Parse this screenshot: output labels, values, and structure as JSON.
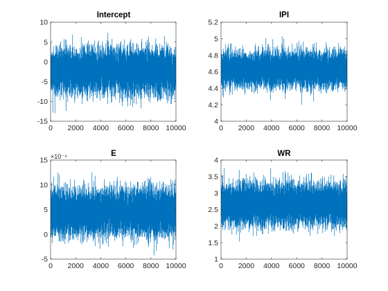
{
  "figure": {
    "background": "#ffffff",
    "line_color": "#0072bd",
    "axis_color": "#262626"
  },
  "chart_data": [
    {
      "type": "line",
      "title": "Intercept",
      "xlabel": "",
      "ylabel": "",
      "xlim": [
        0,
        10000
      ],
      "ylim": [
        -15,
        10
      ],
      "xticks": [
        0,
        2000,
        4000,
        6000,
        8000,
        10000
      ],
      "yticks": [
        -15,
        -10,
        -5,
        0,
        5,
        10
      ],
      "series": [
        {
          "n": 10000,
          "mean": -2.2,
          "sd": 3.1,
          "min": -13,
          "max": 8
        }
      ]
    },
    {
      "type": "line",
      "title": "IPI",
      "xlabel": "",
      "ylabel": "",
      "xlim": [
        0,
        10000
      ],
      "ylim": [
        4,
        5.2
      ],
      "xticks": [
        0,
        2000,
        4000,
        6000,
        8000,
        10000
      ],
      "yticks": [
        4,
        4.2,
        4.4,
        4.6,
        4.8,
        5,
        5.2
      ],
      "series": [
        {
          "n": 10000,
          "mean": 4.63,
          "sd": 0.12,
          "min": 4.2,
          "max": 5.1
        }
      ]
    },
    {
      "type": "line",
      "title": "E",
      "xlabel": "",
      "ylabel": "",
      "xlim": [
        0,
        10000
      ],
      "ylim": [
        -5,
        15
      ],
      "y_exponent": "×10⁻⁴",
      "xticks": [
        0,
        2000,
        4000,
        6000,
        8000,
        10000
      ],
      "yticks": [
        -5,
        0,
        5,
        10,
        15
      ],
      "series": [
        {
          "n": 10000,
          "mean": 4.5,
          "sd": 2.6,
          "min": -4.5,
          "max": 12.5
        }
      ]
    },
    {
      "type": "line",
      "title": "WR",
      "xlabel": "",
      "ylabel": "",
      "xlim": [
        0,
        10000
      ],
      "ylim": [
        1,
        4
      ],
      "xticks": [
        0,
        2000,
        4000,
        6000,
        8000,
        10000
      ],
      "yticks": [
        1,
        1.5,
        2,
        2.5,
        3,
        3.5,
        4
      ],
      "series": [
        {
          "n": 10000,
          "mean": 2.65,
          "sd": 0.35,
          "min": 1.5,
          "max": 4
        }
      ]
    }
  ]
}
